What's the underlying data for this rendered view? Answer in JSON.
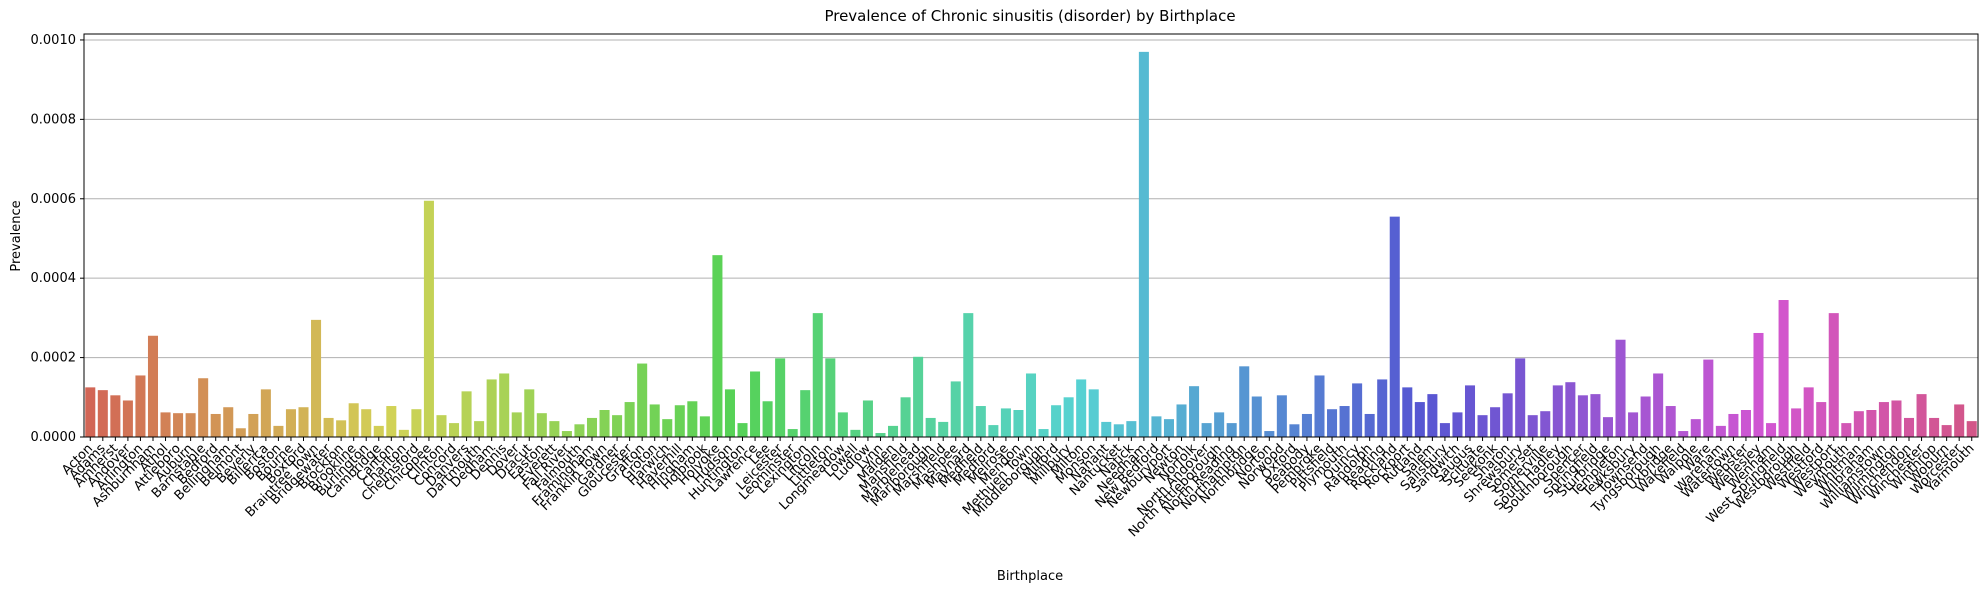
{
  "chart_data": {
    "type": "bar",
    "title": "Prevalence of Chronic sinusitis (disorder) by Birthplace",
    "x_label": "Birthplace",
    "y_label": "Prevalence",
    "palette": "husl",
    "grid": true,
    "ylim": [
      0,
      0.001015
    ],
    "yticks": [
      {
        "value": 0,
        "label": "0.0000"
      },
      {
        "value": 0.0002,
        "label": "0.0002"
      },
      {
        "value": 0.0004,
        "label": "0.0004"
      },
      {
        "value": 0.0006,
        "label": "0.0006"
      },
      {
        "value": 0.0008,
        "label": "0.0008"
      },
      {
        "value": 0.001,
        "label": "0.0010"
      }
    ],
    "categories": [
      "Acton",
      "Adams",
      "Amherst",
      "Andover",
      "Arlington",
      "Ashburnham",
      "Athol",
      "Attleboro",
      "Auburn",
      "Barnstable",
      "Bedford",
      "Bellingham",
      "Belmont",
      "Beverly",
      "Billerica",
      "Boston",
      "Bourne",
      "Boxford",
      "Braintree Town",
      "Bridgewater",
      "Brockton",
      "Brookline",
      "Burlington",
      "Cambridge",
      "Canton",
      "Charlton",
      "Chelmsford",
      "Chicopee",
      "Clinton",
      "Concord",
      "Danvers",
      "Dartmouth",
      "Dedham",
      "Dennis",
      "Dover",
      "Dracut",
      "Easton",
      "Everett",
      "Fall River",
      "Falmouth",
      "Framingham",
      "Franklin Town",
      "Gardner",
      "Gloucester",
      "Grafton",
      "Groton",
      "Harwich",
      "Haverhill",
      "Hingham",
      "Holbrook",
      "Holyoke",
      "Hudson",
      "Huntington",
      "Lawrence",
      "Lee",
      "Leicester",
      "Leominster",
      "Lexington",
      "Lincoln",
      "Littleton",
      "Longmeadow",
      "Lowell",
      "Ludlow",
      "Lynn",
      "Malden",
      "Mansfield",
      "Marblehead",
      "Marlborough",
      "Marshfield",
      "Mashpee",
      "Maynard",
      "Medfield",
      "Medford",
      "Melrose",
      "Mendon",
      "Methuen Town",
      "Middleborough",
      "Milford",
      "Millbury",
      "Milton",
      "Monson",
      "Nahant",
      "Nantucket",
      "Natick",
      "Needham",
      "New Bedford",
      "Newburyport",
      "Newton",
      "Norfolk",
      "North Andover",
      "North Attleborough",
      "North Reading",
      "Northampton",
      "Northbridge",
      "Norton",
      "Norwood",
      "Oxford",
      "Peabody",
      "Pembroke",
      "Pittsfield",
      "Plymouth",
      "Quincy",
      "Randolph",
      "Reading",
      "Rockland",
      "Rockport",
      "Rutland",
      "Salem",
      "Salisbury",
      "Sandwich",
      "Saugus",
      "Scituate",
      "Seekonk",
      "Sharon",
      "Shrewsbury",
      "Somerset",
      "Somerville",
      "South Hadley",
      "Southborough",
      "Spencer",
      "Springfield",
      "Sturbridge",
      "Templeton",
      "Tewksbury",
      "Townsend",
      "Tyngsborough",
      "Uxbridge",
      "Wakefield",
      "Walpole",
      "Ware",
      "Wareham",
      "Watertown",
      "Webster",
      "Wellesley",
      "Wenham",
      "West Springfield",
      "Westborough",
      "Westfield",
      "Westford",
      "Westport",
      "Weymouth",
      "Whitman",
      "Wilbraham",
      "Williamstown",
      "Wilmington",
      "Winchendon",
      "Winchester",
      "Winthrop",
      "Woburn",
      "Worcester",
      "Yarmouth"
    ],
    "values": [
      0.000125,
      0.000118,
      0.000105,
      9.2e-05,
      0.000155,
      0.000255,
      6.2e-05,
      6e-05,
      6e-05,
      0.000148,
      5.8e-05,
      7.5e-05,
      2.2e-05,
      5.8e-05,
      0.00012,
      2.8e-05,
      7e-05,
      7.5e-05,
      0.000295,
      4.8e-05,
      4.2e-05,
      8.5e-05,
      7e-05,
      2.8e-05,
      7.8e-05,
      1.8e-05,
      7e-05,
      0.000595,
      5.5e-05,
      3.5e-05,
      0.000115,
      4e-05,
      0.000145,
      0.00016,
      6.2e-05,
      0.00012,
      6e-05,
      4e-05,
      1.5e-05,
      3.2e-05,
      4.8e-05,
      6.8e-05,
      5.5e-05,
      8.8e-05,
      0.000185,
      8.2e-05,
      4.5e-05,
      8e-05,
      9e-05,
      5.2e-05,
      0.000458,
      0.00012,
      3.5e-05,
      0.000165,
      9e-05,
      0.000198,
      2e-05,
      0.000118,
      0.000312,
      0.000198,
      6.2e-05,
      1.8e-05,
      9.2e-05,
      1e-05,
      2.8e-05,
      0.0001,
      0.000202,
      4.8e-05,
      3.8e-05,
      0.00014,
      0.000312,
      7.8e-05,
      3e-05,
      7.2e-05,
      6.8e-05,
      0.00016,
      2e-05,
      8e-05,
      0.0001,
      0.000145,
      0.00012,
      3.8e-05,
      3.2e-05,
      4e-05,
      0.00097,
      5.2e-05,
      4.5e-05,
      8.2e-05,
      0.000128,
      3.5e-05,
      6.2e-05,
      3.5e-05,
      0.000178,
      0.000102,
      1.5e-05,
      0.000105,
      3.2e-05,
      5.8e-05,
      0.000155,
      7e-05,
      7.8e-05,
      0.000135,
      5.8e-05,
      0.000145,
      0.000555,
      0.000125,
      8.8e-05,
      0.000108,
      3.5e-05,
      6.2e-05,
      0.00013,
      5.5e-05,
      7.5e-05,
      0.00011,
      0.000198,
      5.5e-05,
      6.5e-05,
      0.00013,
      0.000138,
      0.000105,
      0.000108,
      5e-05,
      0.000245,
      6.2e-05,
      0.000102,
      0.00016,
      7.8e-05,
      1.5e-05,
      4.5e-05,
      0.000195,
      2.8e-05,
      5.8e-05,
      6.8e-05,
      0.000262,
      3.5e-05,
      0.000345,
      7.2e-05,
      0.000125,
      8.8e-05,
      0.000312,
      3.5e-05,
      6.5e-05,
      6.8e-05,
      8.8e-05,
      9.2e-05,
      4.8e-05,
      0.000108,
      4.8e-05,
      3e-05,
      8.2e-05,
      4e-05
    ]
  }
}
